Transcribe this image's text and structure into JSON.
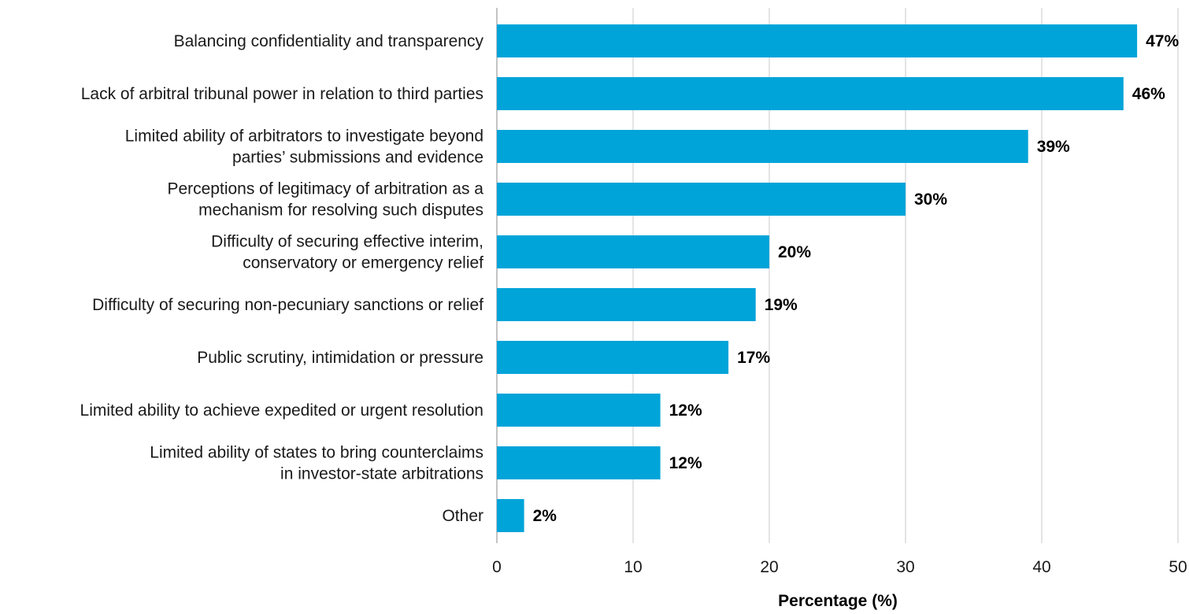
{
  "chart_data": {
    "type": "bar",
    "orientation": "horizontal",
    "categories": [
      [
        "Balancing confidentiality and transparency"
      ],
      [
        "Lack of arbitral tribunal power in relation to third parties"
      ],
      [
        "Limited ability of arbitrators to investigate beyond",
        "parties’ submissions and evidence"
      ],
      [
        "Perceptions of legitimacy of arbitration as a",
        "mechanism for resolving such disputes"
      ],
      [
        "Difficulty of securing effective interim,",
        "conservatory or emergency relief"
      ],
      [
        "Difficulty of securing non-pecuniary sanctions or relief"
      ],
      [
        "Public scrutiny, intimidation or pressure"
      ],
      [
        "Limited ability to achieve expedited or urgent resolution"
      ],
      [
        "Limited ability of states to bring counterclaims",
        "in investor-state arbitrations"
      ],
      [
        "Other"
      ]
    ],
    "values": [
      47,
      46,
      39,
      30,
      20,
      19,
      17,
      12,
      12,
      2
    ],
    "value_labels": [
      "47%",
      "46%",
      "39%",
      "30%",
      "20%",
      "19%",
      "17%",
      "12%",
      "12%",
      "2%"
    ],
    "xlabel": "Percentage (%)",
    "xlim": [
      0,
      50
    ],
    "xticks": [
      0,
      10,
      20,
      30,
      40,
      50
    ],
    "xtick_labels": [
      "0",
      "10",
      "20",
      "30",
      "40",
      "50"
    ],
    "grid": true,
    "bar_color": "#00a4d9"
  }
}
